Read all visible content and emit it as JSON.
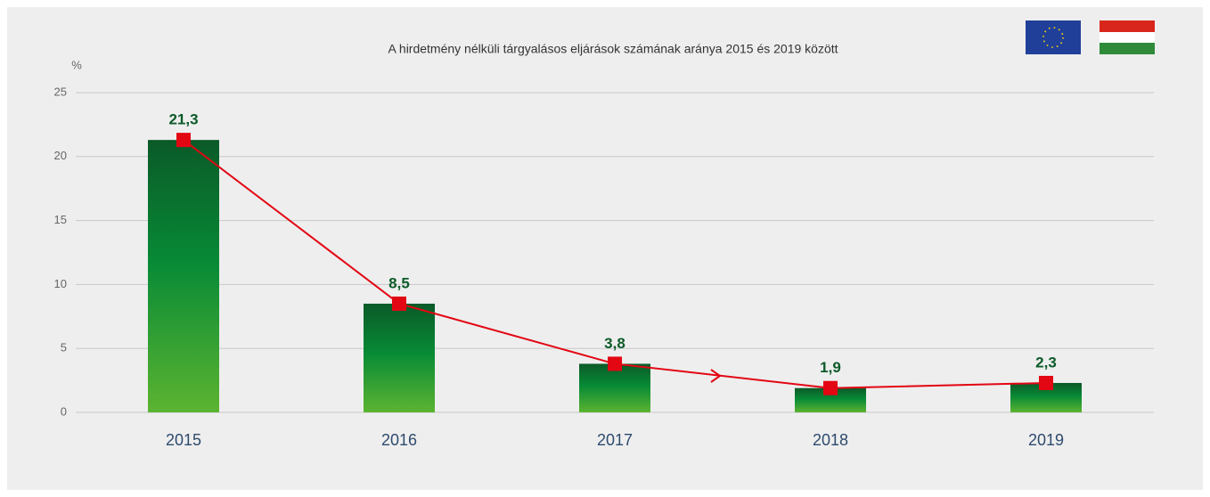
{
  "chart_data": {
    "type": "bar",
    "title": "A hirdetmény nélküli tárgyalásos eljárások számának  aránya 2015 és 2019 között",
    "y_label": "%",
    "categories": [
      "2015",
      "2016",
      "2017",
      "2018",
      "2019"
    ],
    "series": [
      {
        "type": "bar",
        "values": [
          21.3,
          8.5,
          3.8,
          1.9,
          2.3
        ],
        "value_labels": [
          "21,3",
          "8,5",
          "3,8",
          "1,9",
          "2,3"
        ]
      },
      {
        "type": "line",
        "color": "#e30613",
        "values": [
          21.3,
          8.5,
          3.8,
          1.9,
          2.3
        ]
      }
    ],
    "ylim": [
      0,
      25
    ],
    "yticks": [
      0,
      5,
      10,
      15,
      20,
      25
    ],
    "grid": true
  }
}
